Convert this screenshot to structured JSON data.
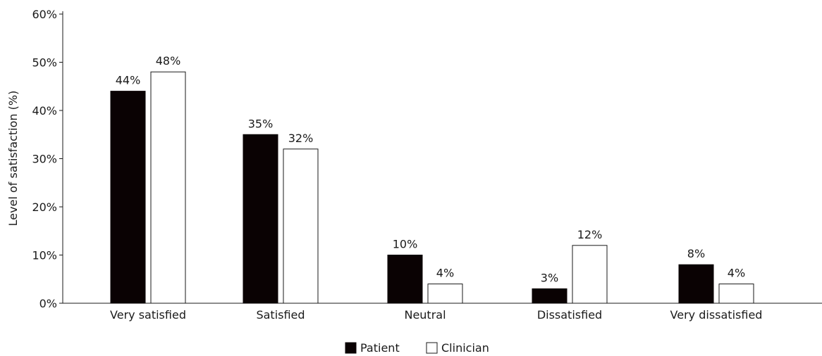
{
  "chart_data": {
    "type": "bar",
    "title": "",
    "xlabel": "",
    "ylabel": "Level of satisfaction (%)",
    "categories": [
      "Very satisfied",
      "Satisfied",
      "Neutral",
      "Dissatisfied",
      "Very dissatisfied"
    ],
    "series": [
      {
        "name": "Patient",
        "values": [
          44,
          35,
          10,
          3,
          8
        ],
        "labels": [
          "44%",
          "35%",
          "10%",
          "3%",
          "8%"
        ],
        "fill": "#0a0203",
        "stroke": "#0a0203"
      },
      {
        "name": "Clinician",
        "values": [
          48,
          32,
          4,
          12,
          4
        ],
        "labels": [
          "48%",
          "32%",
          "4%",
          "12%",
          "4%"
        ],
        "fill": "#ffffff",
        "stroke": "#1a1a1a"
      }
    ],
    "ylim": [
      0,
      60
    ],
    "yticks": [
      0,
      10,
      20,
      30,
      40,
      50,
      60
    ],
    "ytick_labels": [
      "0%",
      "10%",
      "20%",
      "30%",
      "40%",
      "50%",
      "60%"
    ],
    "grid": false,
    "legend_position": "bottom-center"
  }
}
